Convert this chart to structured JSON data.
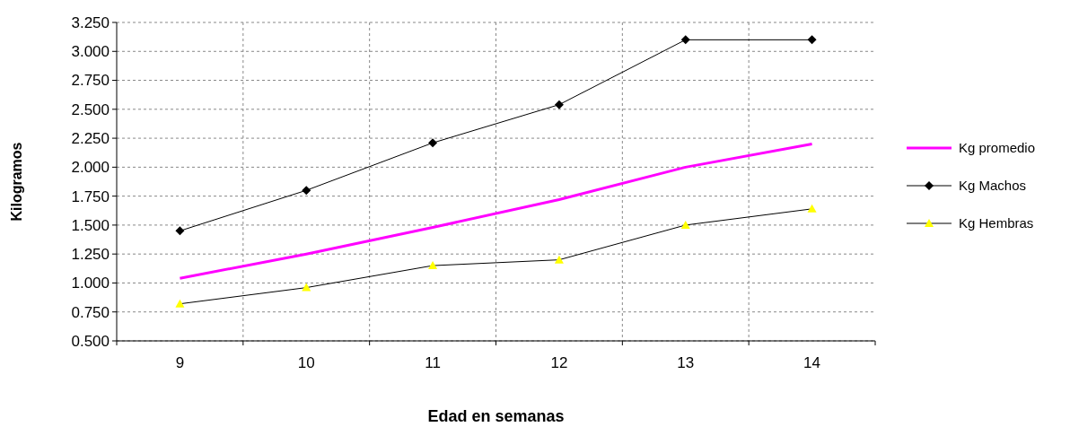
{
  "chart_data": {
    "type": "line",
    "xlabel": "Edad en semanas",
    "ylabel": "Kilogramos",
    "categories": [
      "9",
      "10",
      "11",
      "12",
      "13",
      "14"
    ],
    "series": [
      {
        "name": "Kg promedio",
        "color": "#ff00ff",
        "marker": "none",
        "values": [
          1.04,
          1.25,
          1.48,
          1.72,
          2.0,
          2.2
        ]
      },
      {
        "name": "Kg Machos",
        "color": "#000000",
        "marker": "diamond",
        "values": [
          1.45,
          1.8,
          2.21,
          2.54,
          3.1,
          3.1
        ]
      },
      {
        "name": "Kg Hembras",
        "color": "#ffff00",
        "marker": "triangle",
        "values": [
          0.82,
          0.96,
          1.15,
          1.2,
          1.5,
          1.64
        ]
      }
    ],
    "ylim": [
      0.5,
      3.25
    ],
    "yticks": [
      {
        "value": 0.5,
        "label": "0.500"
      },
      {
        "value": 0.75,
        "label": "0.750"
      },
      {
        "value": 1.0,
        "label": "1.000"
      },
      {
        "value": 1.25,
        "label": "1.250"
      },
      {
        "value": 1.5,
        "label": "1.500"
      },
      {
        "value": 1.75,
        "label": "1.750"
      },
      {
        "value": 2.0,
        "label": "2.000"
      },
      {
        "value": 2.25,
        "label": "2.250"
      },
      {
        "value": 2.5,
        "label": "2.500"
      },
      {
        "value": 2.75,
        "label": "2.750"
      },
      {
        "value": 3.0,
        "label": "3.000"
      },
      {
        "value": 3.25,
        "label": "3.250"
      }
    ],
    "grid": true,
    "legend": "right",
    "line_style": "solid"
  }
}
